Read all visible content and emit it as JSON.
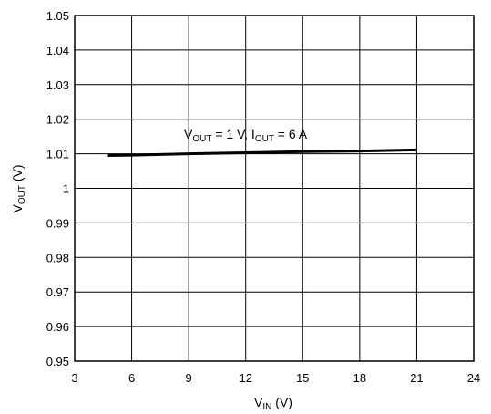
{
  "chart_data": {
    "type": "line",
    "title": "",
    "xlabel": {
      "main": "V",
      "sub": "IN",
      "unit": " (V)"
    },
    "ylabel": {
      "main": "V",
      "sub": "OUT",
      "unit": " (V)"
    },
    "xlim": [
      3,
      24
    ],
    "ylim": [
      0.95,
      1.05
    ],
    "xticks": [
      3,
      6,
      9,
      12,
      15,
      18,
      21,
      24
    ],
    "yticks": [
      0.95,
      0.96,
      0.97,
      0.98,
      0.99,
      1,
      1.01,
      1.02,
      1.03,
      1.04,
      1.05
    ],
    "xtick_labels": [
      "3",
      "6",
      "9",
      "12",
      "15",
      "18",
      "21",
      "24"
    ],
    "ytick_labels": [
      "0.95",
      "0.96",
      "0.97",
      "0.98",
      "0.99",
      "1",
      "1.01",
      "1.02",
      "1.03",
      "1.04",
      "1.05"
    ],
    "grid": true,
    "series": [
      {
        "x": [
          4.75,
          6,
          9,
          12,
          15,
          18,
          21
        ],
        "y": [
          1.0095,
          1.0096,
          1.01,
          1.0103,
          1.0106,
          1.0108,
          1.0111
        ],
        "color": "#000000"
      }
    ],
    "annotations": [
      {
        "parts": [
          {
            "text": "V",
            "sub": false
          },
          {
            "text": "OUT",
            "sub": true
          },
          {
            "text": " = 1 V, I",
            "sub": false
          },
          {
            "text": "OUT",
            "sub": true
          },
          {
            "text": " = 6 A",
            "sub": false
          }
        ]
      }
    ]
  }
}
